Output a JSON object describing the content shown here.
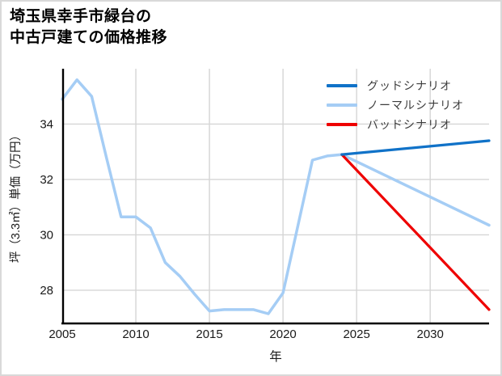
{
  "header": {
    "title_line1": "埼玉県幸手市緑台の",
    "title_line2": "中古戸建ての価格推移"
  },
  "legend": {
    "items": [
      {
        "label": "グッドシナリオ",
        "color": "#1072c8"
      },
      {
        "label": "ノーマルシナリオ",
        "color": "#a5cdf5"
      },
      {
        "label": "バッドシナリオ",
        "color": "#ee0000"
      }
    ]
  },
  "chart_data": {
    "type": "line",
    "title": "埼玉県幸手市緑台の中古戸建ての価格推移",
    "xlabel": "年",
    "ylabel": "坪（3.3㎡）単価（万円）",
    "xlim": [
      2005,
      2034
    ],
    "ylim": [
      26.8,
      36.0
    ],
    "xticks": [
      2005,
      2010,
      2015,
      2020,
      2025,
      2030
    ],
    "yticks": [
      28,
      30,
      32,
      34
    ],
    "grid": true,
    "legend_position": "upper right",
    "colors": {
      "grid": "#d5d5d5",
      "axis": "#000000",
      "tick_label": "#1a1a1a",
      "good": "#1072c8",
      "normal": "#a5cdf5",
      "bad": "#ee0000"
    },
    "series": [
      {
        "name": "ノーマルシナリオ",
        "color": "#a5cdf5",
        "stroke_width": 3.5,
        "x": [
          2005,
          2006,
          2007,
          2008,
          2009,
          2010,
          2011,
          2012,
          2013,
          2014,
          2015,
          2016,
          2017,
          2018,
          2019,
          2020,
          2021,
          2022,
          2023,
          2024,
          2034
        ],
        "y": [
          34.9,
          35.6,
          35.0,
          32.8,
          30.65,
          30.65,
          30.25,
          29.0,
          28.5,
          27.85,
          27.25,
          27.3,
          27.3,
          27.3,
          27.15,
          27.9,
          30.3,
          32.7,
          32.85,
          32.9,
          30.35
        ]
      },
      {
        "name": "バッドシナリオ",
        "color": "#ee0000",
        "stroke_width": 3.2,
        "x": [
          2024,
          2034
        ],
        "y": [
          32.9,
          27.3
        ]
      },
      {
        "name": "グッドシナリオ",
        "color": "#1072c8",
        "stroke_width": 3.2,
        "x": [
          2024,
          2034
        ],
        "y": [
          32.9,
          33.4
        ]
      }
    ]
  }
}
